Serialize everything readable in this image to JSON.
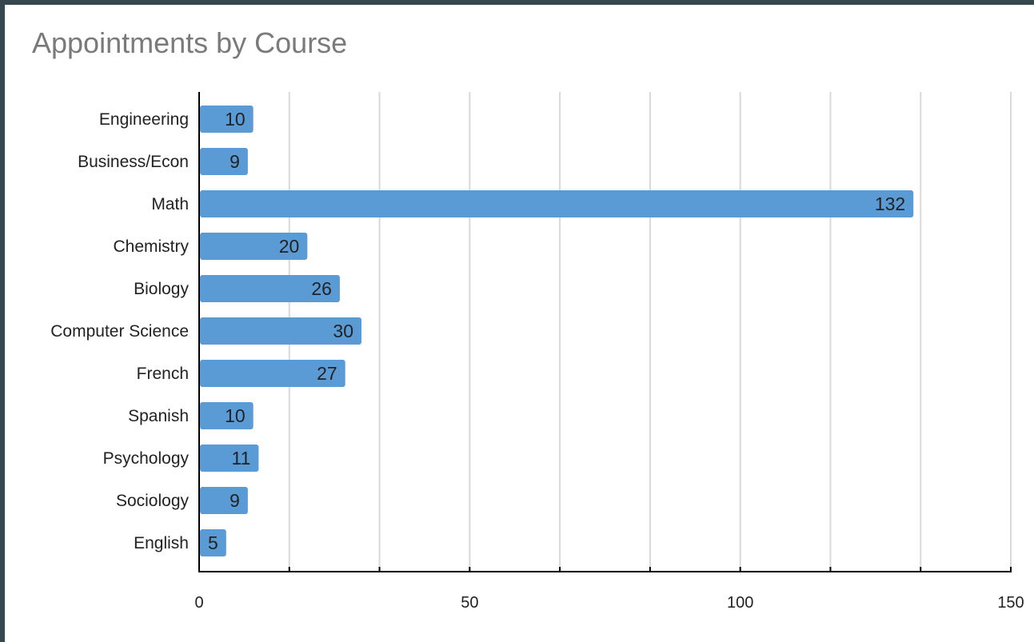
{
  "chart_data": {
    "type": "bar",
    "orientation": "horizontal",
    "title": "Appointments by Course",
    "categories": [
      "Engineering",
      "Business/Econ",
      "Math",
      "Chemistry",
      "Biology",
      "Computer Science",
      "French",
      "Spanish",
      "Psychology",
      "Sociology",
      "English"
    ],
    "values": [
      10,
      9,
      132,
      20,
      26,
      30,
      27,
      10,
      11,
      9,
      5
    ],
    "xlim": [
      0,
      150
    ],
    "x_tick_labels": [
      "0",
      "50",
      "100",
      "150"
    ],
    "grid": true,
    "data_labels": true,
    "bar_color": "#5b9bd5",
    "grid_color": "#d9d9d9",
    "axis_color": "#000000",
    "title_color": "#7a7a7a"
  }
}
